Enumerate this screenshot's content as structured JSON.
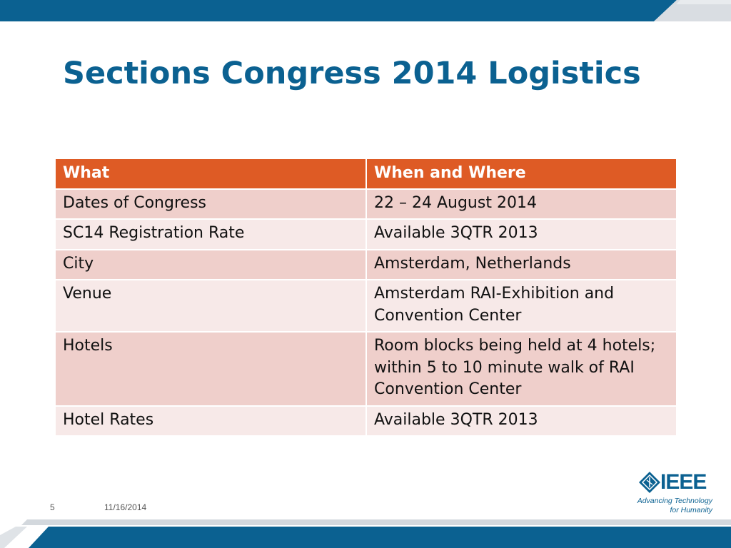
{
  "slide": {
    "title": "Sections Congress 2014 Logistics",
    "page_number": "5",
    "date": "11/16/2014"
  },
  "table": {
    "headers": [
      "What",
      "When and Where"
    ],
    "rows": [
      [
        "Dates of Congress",
        "22 – 24 August 2014"
      ],
      [
        "SC14 Registration Rate",
        "Available 3QTR 2013"
      ],
      [
        "City",
        "Amsterdam, Netherlands"
      ],
      [
        "Venue",
        "Amsterdam RAI-Exhibition and Convention Center"
      ],
      [
        "Hotels",
        "Room blocks being held at 4 hotels; within 5 to 10 minute walk of RAI Convention Center"
      ],
      [
        "Hotel Rates",
        "Available 3QTR 2013"
      ]
    ]
  },
  "logo": {
    "wordmark": "IEEE",
    "tagline_line1": "Advancing Technology",
    "tagline_line2": "for Humanity",
    "icon": "ieee-diamond-icon"
  },
  "colors": {
    "brand_blue": "#0b6191",
    "header_orange": "#de5b25",
    "row_dark": "#efcfcb",
    "row_light": "#f7e9e8"
  }
}
